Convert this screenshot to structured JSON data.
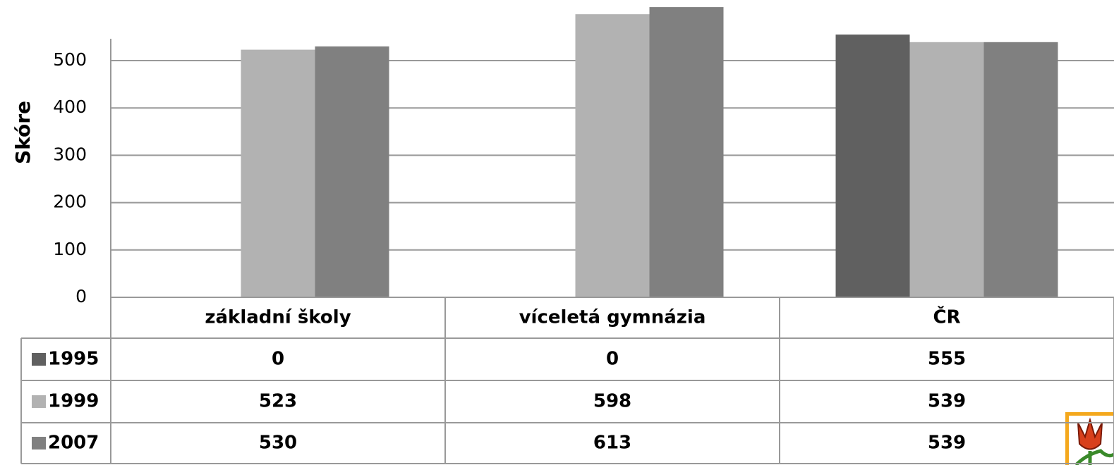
{
  "chart_data": {
    "type": "bar",
    "y_label": "Skóre",
    "categories": [
      "základní školy",
      "víceletá gymnázia",
      "ČR"
    ],
    "series": [
      {
        "name": "1995",
        "color": "#606060",
        "values": [
          0,
          0,
          555
        ]
      },
      {
        "name": "1999",
        "color": "#b2b2b2",
        "values": [
          523,
          598,
          539
        ]
      },
      {
        "name": "2007",
        "color": "#808080",
        "values": [
          530,
          613,
          539
        ]
      }
    ],
    "ylim": [
      0,
      628
    ],
    "yticks": [
      0,
      100,
      200,
      300,
      400,
      500
    ],
    "grid": true
  }
}
